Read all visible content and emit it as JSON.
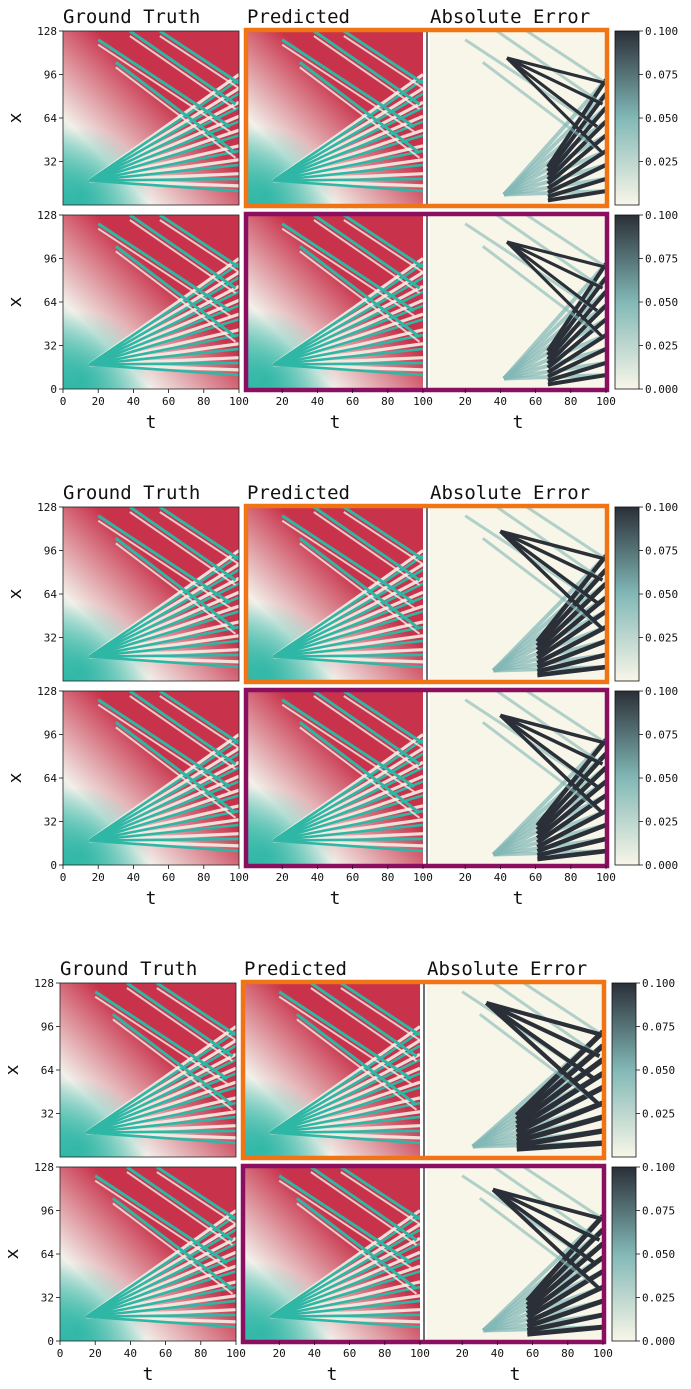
{
  "colors": {
    "ground_truth_high": "#c8324a",
    "ground_truth_mid": "#f2f0ea",
    "ground_truth_low": "#2fb7a6",
    "error_low": "#f8f6e8",
    "error_mid": "#82b8b6",
    "error_high": "#2a2f38",
    "frame_orange": "#f07314",
    "frame_purple": "#8a0f60"
  },
  "chart_data": [
    {
      "type": "heatmap",
      "panel_titles": [
        "Ground Truth",
        "Predicted",
        "Absolute Error"
      ],
      "ylabel": "x",
      "xlabel": "t",
      "xlim": [
        0,
        100
      ],
      "ylim": [
        0,
        128
      ],
      "yticks": [
        "128",
        "96",
        "64",
        "32",
        "0"
      ],
      "xticks": [
        "0",
        "20",
        "40",
        "60",
        "80",
        "100"
      ],
      "rows": [
        {
          "frame": "orange",
          "colorbar_ticks": [
            "0.100",
            "0.075",
            "0.050",
            "0.025"
          ],
          "colorbar_range": [
            0,
            0.1
          ],
          "error_level": 0.45
        },
        {
          "frame": "purple",
          "colorbar_ticks": [
            "0.100",
            "0.075",
            "0.050",
            "0.025",
            "0.000"
          ],
          "colorbar_range": [
            0,
            0.1
          ],
          "error_level": 0.45
        }
      ]
    },
    {
      "type": "heatmap",
      "panel_titles": [
        "Ground Truth",
        "Predicted",
        "Absolute Error"
      ],
      "ylabel": "x",
      "xlabel": "t",
      "xlim": [
        0,
        100
      ],
      "ylim": [
        0,
        128
      ],
      "yticks": [
        "128",
        "96",
        "64",
        "32",
        "0"
      ],
      "xticks": [
        "0",
        "20",
        "40",
        "60",
        "80",
        "100"
      ],
      "rows": [
        {
          "frame": "orange",
          "colorbar_ticks": [
            "0.100",
            "0.075",
            "0.050",
            "0.025"
          ],
          "colorbar_range": [
            0,
            0.1
          ],
          "error_level": 0.6
        },
        {
          "frame": "purple",
          "colorbar_ticks": [
            "0.100",
            "0.075",
            "0.050",
            "0.025",
            "0.000"
          ],
          "colorbar_range": [
            0,
            0.1
          ],
          "error_level": 0.6
        }
      ]
    },
    {
      "type": "heatmap",
      "panel_titles": [
        "Ground Truth",
        "Predicted",
        "Absolute Error"
      ],
      "ylabel": "x",
      "xlabel": "t",
      "xlim": [
        0,
        100
      ],
      "ylim": [
        0,
        128
      ],
      "yticks": [
        "128",
        "96",
        "64",
        "32",
        "0"
      ],
      "xticks": [
        "0",
        "20",
        "40",
        "60",
        "80",
        "100"
      ],
      "rows": [
        {
          "frame": "orange",
          "colorbar_ticks": [
            "0.100",
            "0.075",
            "0.050",
            "0.025"
          ],
          "colorbar_range": [
            0,
            0.1
          ],
          "error_level": 0.85
        },
        {
          "frame": "purple",
          "colorbar_ticks": [
            "0.100",
            "0.075",
            "0.050",
            "0.025",
            "0.000"
          ],
          "colorbar_range": [
            0,
            0.1
          ],
          "error_level": 0.7
        }
      ]
    }
  ]
}
